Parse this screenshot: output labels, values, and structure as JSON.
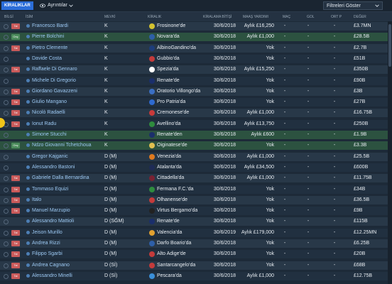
{
  "topbar": {
    "tab_label": "KİRALIKLAR",
    "details_label": "Ayrıntılar",
    "filter_label": "Filtreleri Göster"
  },
  "columns": {
    "bilgi": "BİLGİ",
    "isim": "İSİM",
    "mevki": "MEVKİ",
    "kiralik": "KİRALIK",
    "bitis": "KİRALAMA BİTİŞİ",
    "maas": "MAAŞ YARDIMI",
    "mac": "MAÇ",
    "gol": "GOL",
    "ort": "ORT P",
    "deger": "DEĞER"
  },
  "rows": [
    {
      "badge": "Tal",
      "name": "Francesco Bardi",
      "pos": "K",
      "club": "Frosinone'de",
      "date": "30/6/2018",
      "wage": "Aylık £16,250",
      "mac": "-",
      "gol": "-",
      "ort": "-",
      "val": "£3.7MN",
      "crest": "#d4c330"
    },
    {
      "badge": "Onç",
      "name": "Pierre Bolchini",
      "pos": "K",
      "club": "Novara'da",
      "date": "30/6/2018",
      "wage": "Aylık £1,000",
      "mac": "-",
      "gol": "-",
      "ort": "-",
      "val": "£28.5B",
      "crest": "#2e5fa8"
    },
    {
      "badge": "Tal",
      "name": "Pietro Clemente",
      "pos": "K",
      "club": "AlbinoGandino'da",
      "date": "30/6/2018",
      "wage": "Yok",
      "mac": "-",
      "gol": "-",
      "ort": "-",
      "val": "£2.7B",
      "crest": "#1d3d7a"
    },
    {
      "badge": "",
      "name": "Davide Costa",
      "pos": "K",
      "club": "Gubbio'da",
      "date": "30/6/2018",
      "wage": "Yok",
      "mac": "-",
      "gol": "-",
      "ort": "-",
      "val": "£51B",
      "crest": "#c43b3b"
    },
    {
      "badge": "Tal",
      "name": "Raffaele Di Gennaro",
      "pos": "K",
      "club": "Spezia'da",
      "date": "30/6/2018",
      "wage": "Aylık £15,250",
      "mac": "-",
      "gol": "-",
      "ort": "-",
      "val": "£350B",
      "crest": "#ffffff"
    },
    {
      "badge": "",
      "name": "Michele Di Gregorio",
      "pos": "K",
      "club": "Renate'de",
      "date": "30/6/2018",
      "wage": "Yok",
      "mac": "-",
      "gol": "-",
      "ort": "-",
      "val": "£90B",
      "crest": "#1b2f6b"
    },
    {
      "badge": "Tal",
      "name": "Giordano Gavazzeni",
      "pos": "K",
      "club": "Oratorio Villongo'da",
      "date": "30/6/2018",
      "wage": "Yok",
      "mac": "-",
      "gol": "-",
      "ort": "-",
      "val": "£3B",
      "crest": "#3b6fc4"
    },
    {
      "badge": "Tal",
      "name": "Giulio Mangano",
      "pos": "K",
      "club": "Pro Patria'da",
      "date": "30/6/2018",
      "wage": "Yok",
      "mac": "-",
      "gol": "-",
      "ort": "-",
      "val": "£27B",
      "crest": "#2e6ad1"
    },
    {
      "badge": "Tal",
      "name": "Nicolò Radaelli",
      "pos": "K",
      "club": "Cremonese'de",
      "date": "30/6/2018",
      "wage": "Aylık £1,000",
      "mac": "-",
      "gol": "-",
      "ort": "-",
      "val": "£16.75B",
      "crest": "#c83a3a"
    },
    {
      "badge": "Tal",
      "name": "Ionut Radu",
      "pos": "K",
      "club": "Avellino'da",
      "date": "30/6/2018",
      "wage": "Aylık £13,750",
      "mac": "-",
      "gol": "-",
      "ort": "-",
      "val": "£250B",
      "crest": "#2f8c3e"
    },
    {
      "badge": "",
      "name": "Simone Stucchi",
      "pos": "K",
      "club": "Renate'den",
      "date": "30/6/2018",
      "wage": "Aylık £600",
      "mac": "-",
      "gol": "-",
      "ort": "-",
      "val": "£1.9B",
      "crest": "#1b2f6b"
    },
    {
      "badge": "Onç",
      "name": "Ndzo Giovanni Tchetchoua",
      "pos": "K",
      "club": "Oiginatese'de",
      "date": "30/6/2018",
      "wage": "Yok",
      "mac": "-",
      "gol": "-",
      "ort": "-",
      "val": "£3.3B",
      "crest": "#e0c050"
    },
    {
      "badge": "",
      "name": "Gregor Kajganic",
      "pos": "D (M)",
      "club": "Venezia'da",
      "date": "30/6/2018",
      "wage": "Aylık £1,000",
      "mac": "-",
      "gol": "-",
      "ort": "-",
      "val": "£25.5B",
      "crest": "#e07a1f"
    },
    {
      "badge": "",
      "name": "Alessandro Bastoni",
      "pos": "D (M)",
      "club": "Atalanta'da",
      "date": "30/6/2018",
      "wage": "Aylık £34,500",
      "mac": "-",
      "gol": "-",
      "ort": "-",
      "val": "£600B",
      "crest": "#1e2b56"
    },
    {
      "badge": "Tal",
      "name": "Gabriele Dalla Bernardina",
      "pos": "D (M)",
      "club": "Cittadella'da",
      "date": "30/6/2018",
      "wage": "Aylık £1,000",
      "mac": "-",
      "gol": "-",
      "ort": "-",
      "val": "£11.75B",
      "crest": "#7a2232"
    },
    {
      "badge": "Tal",
      "name": "Tommaso Equizi",
      "pos": "D (M)",
      "club": "Fermana F.C.'da",
      "date": "30/6/2018",
      "wage": "Yok",
      "mac": "-",
      "gol": "-",
      "ort": "-",
      "val": "£34B",
      "crest": "#2f8c3e"
    },
    {
      "badge": "Tal",
      "name": "Italo",
      "pos": "D (M)",
      "club": "Olhanense'de",
      "date": "30/6/2018",
      "wage": "Yok",
      "mac": "-",
      "gol": "-",
      "ort": "-",
      "val": "£36.5B",
      "crest": "#c43b3b"
    },
    {
      "badge": "Tal",
      "name": "Manuel Marzupio",
      "pos": "D (M)",
      "club": "Virtus Bergamo'da",
      "date": "30/6/2018",
      "wage": "Yok",
      "mac": "-",
      "gol": "-",
      "ort": "-",
      "val": "£9B",
      "crest": "#222222"
    },
    {
      "badge": "",
      "name": "Alessandro Mattioli",
      "pos": "D (SĞM)",
      "club": "Renate'de",
      "date": "30/6/2018",
      "wage": "Yok",
      "mac": "-",
      "gol": "-",
      "ort": "-",
      "val": "£115B",
      "crest": "#1b2f6b"
    },
    {
      "badge": "Tal",
      "name": "Jeison Murillo",
      "pos": "D (M)",
      "club": "Valencia'da",
      "date": "30/6/2019",
      "wage": "Aylık £179,000",
      "mac": "-",
      "gol": "-",
      "ort": "-",
      "val": "£12.25MN",
      "crest": "#e0a030"
    },
    {
      "badge": "Tal",
      "name": "Andrea Rizzi",
      "pos": "D (M)",
      "club": "Darfo Boario'da",
      "date": "30/6/2018",
      "wage": "Yok",
      "mac": "-",
      "gol": "-",
      "ort": "-",
      "val": "£6.25B",
      "crest": "#2e5fa8"
    },
    {
      "badge": "Tal",
      "name": "Filippo Sgarbi",
      "pos": "D (M)",
      "club": "Alto Adige'de",
      "date": "30/6/2018",
      "wage": "Yok",
      "mac": "-",
      "gol": "-",
      "ort": "-",
      "val": "£20B",
      "crest": "#c43b3b"
    },
    {
      "badge": "Tal",
      "name": "Andrea Cagnano",
      "pos": "D (Sİ)",
      "club": "Santarcangelo'da",
      "date": "30/6/2018",
      "wage": "Yok",
      "mac": "-",
      "gol": "-",
      "ort": "-",
      "val": "£68B",
      "crest": "#c43b3b"
    },
    {
      "badge": "Tal",
      "name": "Alessandro Minelli",
      "pos": "D (Sİ)",
      "club": "Pescara'da",
      "date": "30/6/2018",
      "wage": "Aylık £1,000",
      "mac": "-",
      "gol": "-",
      "ort": "-",
      "val": "£12.75B",
      "crest": "#3a8fd9"
    }
  ]
}
